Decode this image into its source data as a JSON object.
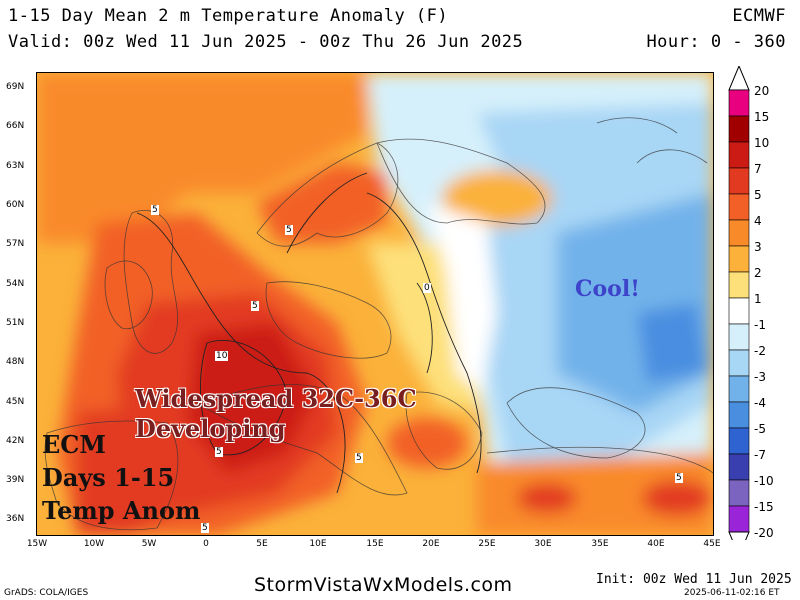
{
  "header": {
    "title": "1-15 Day Mean 2 m Temperature Anomaly (F)",
    "model": "ECMWF",
    "valid": "Valid: 00z Wed 11 Jun 2025 - 00z Thu 26 Jun 2025",
    "hour": "Hour: 0 - 360"
  },
  "map": {
    "lat_labels": [
      "69N",
      "66N",
      "63N",
      "60N",
      "57N",
      "54N",
      "51N",
      "48N",
      "45N",
      "42N",
      "39N",
      "36N"
    ],
    "lon_labels": [
      "15W",
      "10W",
      "5W",
      "0",
      "5E",
      "10E",
      "15E",
      "20E",
      "25E",
      "30E",
      "35E",
      "40E",
      "45E"
    ],
    "contour_labels": [
      "5",
      "5",
      "5",
      "10",
      "5",
      "5",
      "0",
      "5",
      "5"
    ],
    "annotations": {
      "heat_line1": "Widespread 32C-36C",
      "heat_line2": "Developing",
      "ecm_line1": "ECM",
      "ecm_line2": "Days 1-15",
      "ecm_line3": "Temp Anom",
      "cool": "Cool!"
    }
  },
  "colorbar": {
    "labels": [
      "20",
      "15",
      "10",
      "7",
      "5",
      "4",
      "3",
      "2",
      "1",
      "-1",
      "-2",
      "-3",
      "-4",
      "-5",
      "-7",
      "-10",
      "-15",
      "-20"
    ],
    "colors": [
      "#e8007e",
      "#a00000",
      "#cc1a14",
      "#e23a20",
      "#f26028",
      "#f98a2a",
      "#fbb13a",
      "#fde07a",
      "#ffffff",
      "#d6f0fb",
      "#a8d6f5",
      "#72b2ea",
      "#4a8ee0",
      "#2f63d2",
      "#3a3fb0",
      "#7a64c0",
      "#9a25d8"
    ],
    "accent_top": "#e8007e",
    "accent_bottom": "#9a25d8"
  },
  "footer": {
    "grads": "GrADS: COLA/IGES",
    "site": "StormVistaWxModels.com",
    "init": "Init: 00z Wed 11 Jun 2025",
    "timestamp": "2025-06-11-02:16 ET"
  }
}
